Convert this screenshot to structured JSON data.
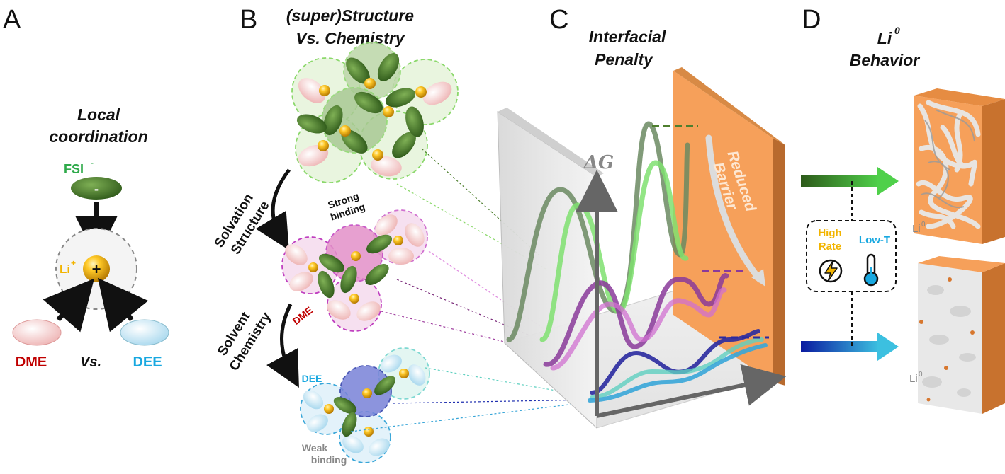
{
  "panels": {
    "a": {
      "letter": "A",
      "title_line1": "Local",
      "title_line2": "coordination",
      "fsi_label": "FSI",
      "fsi_sup": "-",
      "fsi_sign": "-",
      "li_label": "Li",
      "li_sup": "+",
      "li_sign": "+",
      "dme_label": "DME",
      "vs_label": "Vs.",
      "dee_label": "DEE"
    },
    "b": {
      "letter": "B",
      "title_line1": "(super)Structure",
      "title_line2": "Vs. Chemistry",
      "arrow1_line1": "Solvation",
      "arrow1_line2": "Structure",
      "arrow2_line1": "Solvent",
      "arrow2_line2": "Chemistry",
      "strong_line1": "Strong",
      "strong_line2": "binding",
      "weak_line1": "Weak",
      "weak_line2": "binding",
      "dme_tag": "DME",
      "dee_tag": "DEE"
    },
    "c": {
      "letter": "C",
      "title_line1": "Interfacial",
      "title_line2": "Penalty",
      "dg_label": "ΔG",
      "barrier_line1": "Reduced",
      "barrier_line2": "Barrier"
    },
    "d": {
      "letter": "D",
      "title_line1": "Li",
      "title_sup": "0",
      "title_line2": "Behavior",
      "high_line1": "High",
      "high_line2": "Rate",
      "lowt_label": "Low-T",
      "li0_top": "Li",
      "li0_top_sup": "0",
      "li0_bot": "Li",
      "li0_bot_sup": "0"
    }
  },
  "colors": {
    "fsi": "#4e7f2e",
    "li": "#f2b400",
    "dme": "#c00000",
    "dee": "#18a8e0",
    "fsi_label": "#2eaa4a",
    "orange_wall": "#f6a05a",
    "high_rate": "#f2b400",
    "low_t": "#18a8e0"
  },
  "icons": [
    "lightning-icon",
    "thermometer-icon"
  ]
}
